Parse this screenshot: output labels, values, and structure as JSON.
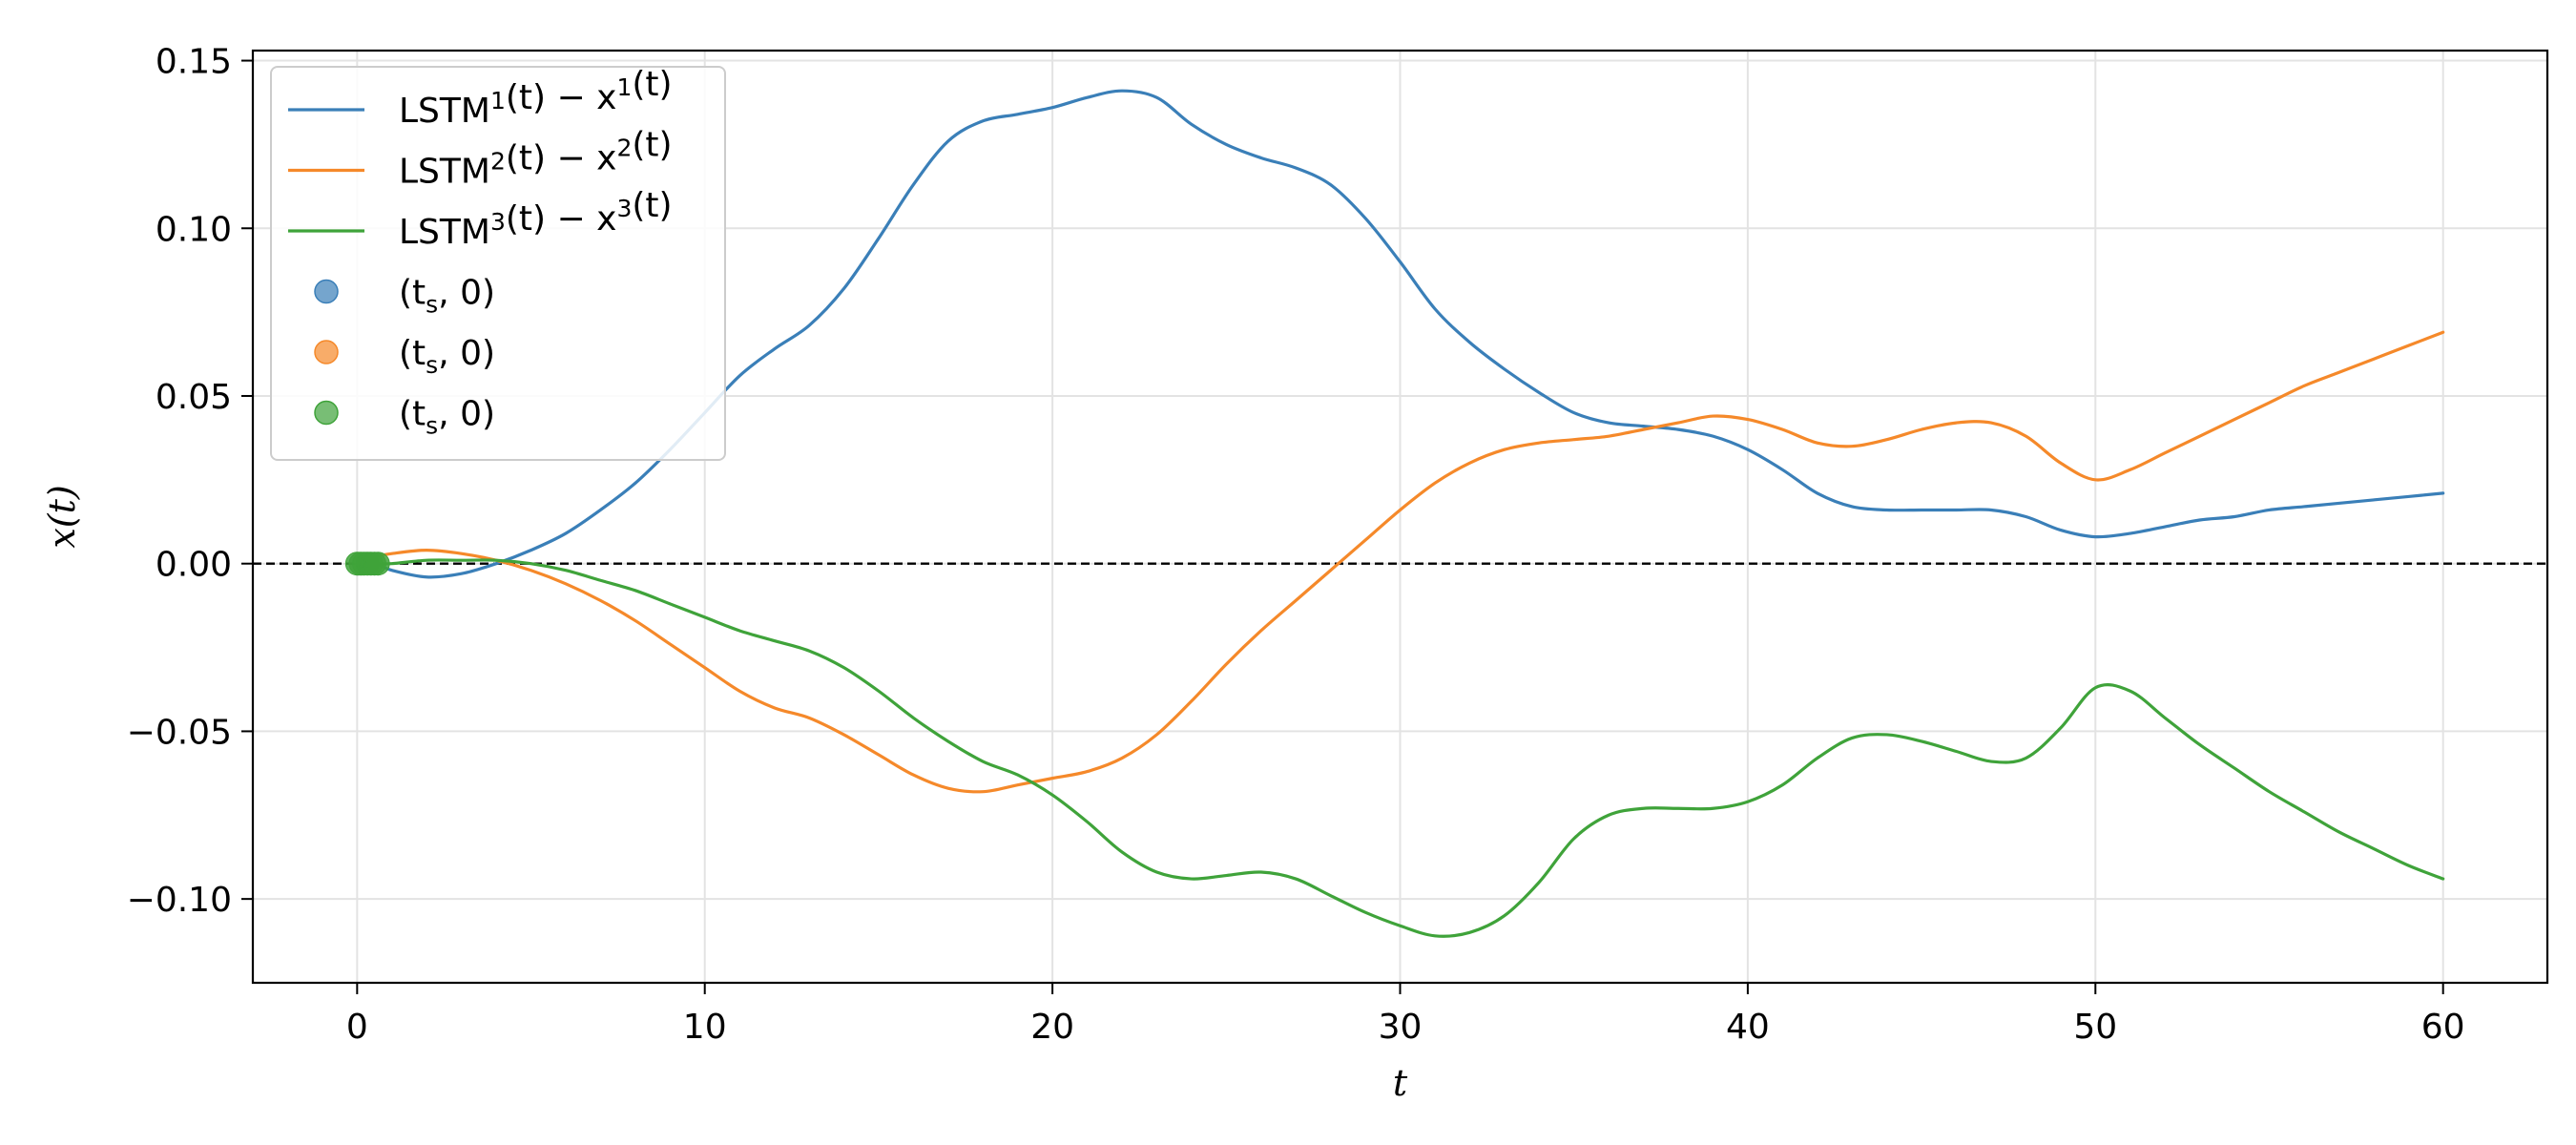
{
  "chart_data": {
    "type": "line",
    "xlabel": "t",
    "ylabel": "x(t)",
    "xlim": [
      -3,
      63
    ],
    "ylim": [
      -0.125,
      0.153
    ],
    "xticks": [
      0,
      10,
      20,
      30,
      40,
      50,
      60
    ],
    "xtick_labels": [
      "0",
      "10",
      "20",
      "30",
      "40",
      "50",
      "60"
    ],
    "yticks": [
      -0.1,
      -0.05,
      0.0,
      0.05,
      0.1,
      0.15
    ],
    "ytick_labels": [
      "−0.10",
      "−0.05",
      "0.00",
      "0.05",
      "0.10",
      "0.15"
    ],
    "grid": true,
    "legend_position": "upper-left",
    "reference_line": {
      "y": 0,
      "style": "dashed",
      "color": "#000000"
    },
    "series": [
      {
        "legend": {
          "base": "LSTM",
          "sup1": "1",
          "mid": "(t) − x",
          "sup2": "1",
          "tail": "(t)"
        },
        "color": "#3a7fb8",
        "x": [
          0,
          0.5,
          1,
          2,
          3,
          4,
          5,
          6,
          7,
          8,
          9,
          10,
          11,
          12,
          13,
          14,
          15,
          16,
          17,
          18,
          19,
          20,
          21,
          22,
          23,
          24,
          25,
          26,
          27,
          28,
          29,
          30,
          31,
          32,
          33,
          34,
          35,
          36,
          37,
          38,
          39,
          40,
          41,
          42,
          43,
          44,
          45,
          46,
          47,
          48,
          49,
          50,
          51,
          52,
          53,
          54,
          55,
          56,
          57,
          58,
          59,
          60
        ],
        "y": [
          0.0,
          0.0,
          -0.002,
          -0.004,
          -0.003,
          0.0,
          0.004,
          0.009,
          0.016,
          0.024,
          0.034,
          0.045,
          0.056,
          0.064,
          0.071,
          0.082,
          0.097,
          0.113,
          0.126,
          0.132,
          0.134,
          0.136,
          0.139,
          0.141,
          0.139,
          0.131,
          0.125,
          0.121,
          0.118,
          0.113,
          0.103,
          0.09,
          0.076,
          0.066,
          0.058,
          0.051,
          0.045,
          0.042,
          0.041,
          0.04,
          0.038,
          0.034,
          0.028,
          0.021,
          0.017,
          0.016,
          0.016,
          0.016,
          0.016,
          0.014,
          0.01,
          0.008,
          0.009,
          0.011,
          0.013,
          0.014,
          0.016,
          0.017,
          0.018,
          0.019,
          0.02,
          0.021
        ]
      },
      {
        "legend": {
          "base": "LSTM",
          "sup1": "2",
          "mid": "(t) − x",
          "sup2": "2",
          "tail": "(t)"
        },
        "color": "#f5892a",
        "x": [
          0,
          0.5,
          1,
          2,
          3,
          4,
          5,
          6,
          7,
          8,
          9,
          10,
          11,
          12,
          13,
          14,
          15,
          16,
          17,
          18,
          19,
          20,
          21,
          22,
          23,
          24,
          25,
          26,
          27,
          28,
          29,
          30,
          31,
          32,
          33,
          34,
          35,
          36,
          37,
          38,
          39,
          40,
          41,
          42,
          43,
          44,
          45,
          46,
          47,
          48,
          49,
          50,
          51,
          52,
          53,
          54,
          55,
          56,
          57,
          58,
          59,
          60
        ],
        "y": [
          0.0,
          0.002,
          0.003,
          0.004,
          0.003,
          0.001,
          -0.002,
          -0.006,
          -0.011,
          -0.017,
          -0.024,
          -0.031,
          -0.038,
          -0.043,
          -0.046,
          -0.051,
          -0.057,
          -0.063,
          -0.067,
          -0.068,
          -0.066,
          -0.064,
          -0.062,
          -0.058,
          -0.051,
          -0.041,
          -0.03,
          -0.02,
          -0.011,
          -0.002,
          0.007,
          0.016,
          0.024,
          0.03,
          0.034,
          0.036,
          0.037,
          0.038,
          0.04,
          0.042,
          0.044,
          0.043,
          0.04,
          0.036,
          0.035,
          0.037,
          0.04,
          0.042,
          0.042,
          0.038,
          0.03,
          0.025,
          0.028,
          0.033,
          0.038,
          0.043,
          0.048,
          0.053,
          0.057,
          0.061,
          0.065,
          0.069
        ]
      },
      {
        "legend": {
          "base": "LSTM",
          "sup1": "3",
          "mid": "(t) − x",
          "sup2": "3",
          "tail": "(t)"
        },
        "color": "#3fa33a",
        "x": [
          0,
          0.5,
          1,
          2,
          3,
          4,
          5,
          6,
          7,
          8,
          9,
          10,
          11,
          12,
          13,
          14,
          15,
          16,
          17,
          18,
          19,
          20,
          21,
          22,
          23,
          24,
          25,
          26,
          27,
          28,
          29,
          30,
          31,
          32,
          33,
          34,
          35,
          36,
          37,
          38,
          39,
          40,
          41,
          42,
          43,
          44,
          45,
          46,
          47,
          48,
          49,
          50,
          51,
          52,
          53,
          54,
          55,
          56,
          57,
          58,
          59,
          60
        ],
        "y": [
          0.0,
          0.0,
          0.0,
          0.001,
          0.001,
          0.001,
          0.0,
          -0.002,
          -0.005,
          -0.008,
          -0.012,
          -0.016,
          -0.02,
          -0.023,
          -0.026,
          -0.031,
          -0.038,
          -0.046,
          -0.053,
          -0.059,
          -0.063,
          -0.069,
          -0.077,
          -0.086,
          -0.092,
          -0.094,
          -0.093,
          -0.092,
          -0.094,
          -0.099,
          -0.104,
          -0.108,
          -0.111,
          -0.11,
          -0.105,
          -0.095,
          -0.082,
          -0.075,
          -0.073,
          -0.073,
          -0.073,
          -0.071,
          -0.066,
          -0.058,
          -0.052,
          -0.051,
          -0.053,
          -0.056,
          -0.059,
          -0.058,
          -0.049,
          -0.037,
          -0.038,
          -0.046,
          -0.054,
          -0.061,
          -0.068,
          -0.074,
          -0.08,
          -0.085,
          -0.09,
          -0.094
        ]
      }
    ],
    "start_markers": {
      "x": [
        0,
        0.1,
        0.2,
        0.3,
        0.4,
        0.5,
        0.6
      ],
      "y": [
        0,
        0,
        0,
        0,
        0,
        0,
        0
      ],
      "color": "#3fa33a"
    },
    "marker_legend": [
      {
        "text": "(t_s, 0)",
        "color": "#3a7fb8"
      },
      {
        "text": "(t_s, 0)",
        "color": "#f5892a"
      },
      {
        "text": "(t_s, 0)",
        "color": "#3fa33a"
      }
    ]
  }
}
